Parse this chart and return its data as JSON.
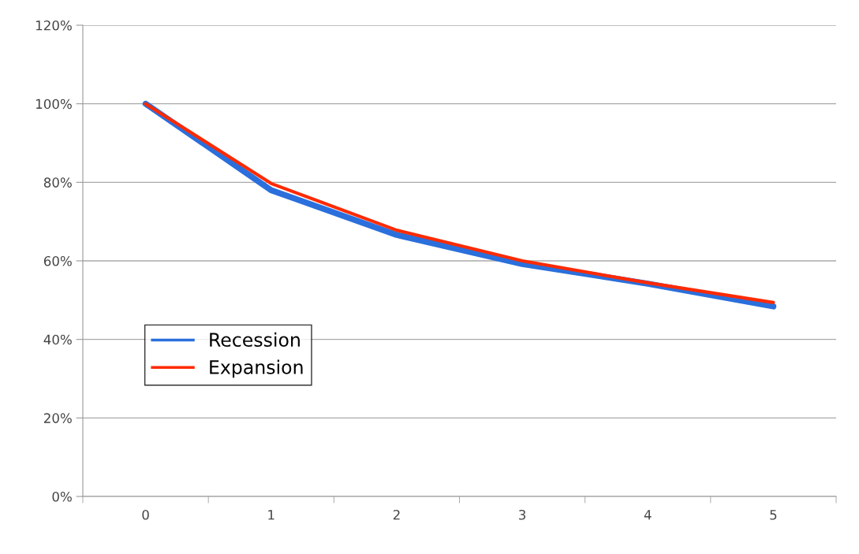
{
  "chart_data": {
    "type": "line",
    "categories": [
      "0",
      "1",
      "2",
      "3",
      "4",
      "5"
    ],
    "series": [
      {
        "name": "Recession",
        "color": "#2a6fdc",
        "values": [
          100,
          78,
          66.6,
          59.2,
          54.2,
          48.4
        ]
      },
      {
        "name": "Expansion",
        "color": "#ff2a00",
        "values": [
          100,
          79.7,
          67.8,
          60,
          54.4,
          49.4
        ]
      }
    ],
    "ylim": [
      0,
      120
    ],
    "yticks": [
      {
        "value": 0,
        "label": "0%"
      },
      {
        "value": 20,
        "label": "20%"
      },
      {
        "value": 40,
        "label": "40%"
      },
      {
        "value": 60,
        "label": "60%"
      },
      {
        "value": 80,
        "label": "80%"
      },
      {
        "value": 100,
        "label": "100%"
      },
      {
        "value": 120,
        "label": "120%"
      }
    ],
    "grid": "y",
    "legend": "left",
    "marker": "none",
    "line_style": "solid"
  }
}
